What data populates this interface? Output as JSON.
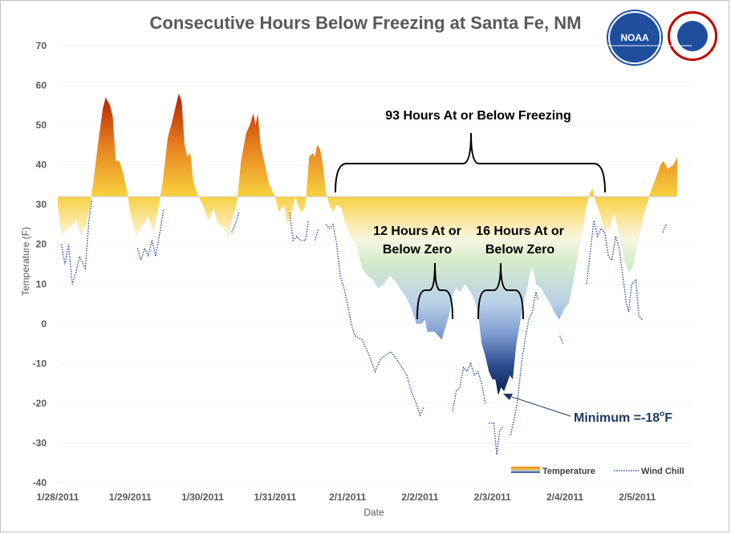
{
  "chart_data": {
    "type": "area",
    "title": "Consecutive Hours Below Freezing at Santa Fe, NM",
    "xlabel": "Date",
    "ylabel": "Temperature (F)",
    "ylim": [
      -40,
      70
    ],
    "xlim": [
      0,
      8.75
    ],
    "y_ticks": [
      70,
      60,
      50,
      40,
      30,
      20,
      10,
      0,
      -10,
      -20,
      -30,
      -40
    ],
    "x_ticks": [
      "1/28/2011",
      "1/29/2011",
      "1/30/2011",
      "1/31/2011",
      "2/1/2011",
      "2/2/2011",
      "2/3/2011",
      "2/4/2011",
      "2/5/2011"
    ],
    "freezing_line": 32,
    "legend": {
      "placement": "bottom-right",
      "entries": [
        "Temperature",
        "Wind Chill"
      ]
    },
    "series": [
      {
        "name": "Temperature",
        "points": [
          [
            0.0,
            30
          ],
          [
            0.05,
            22
          ],
          [
            0.15,
            24
          ],
          [
            0.25,
            26
          ],
          [
            0.32,
            22
          ],
          [
            0.4,
            25
          ],
          [
            0.45,
            30
          ],
          [
            0.5,
            37
          ],
          [
            0.56,
            46
          ],
          [
            0.62,
            54
          ],
          [
            0.66,
            57
          ],
          [
            0.72,
            55
          ],
          [
            0.76,
            52
          ],
          [
            0.8,
            41
          ],
          [
            0.85,
            41
          ],
          [
            0.9,
            38
          ],
          [
            0.95,
            34
          ],
          [
            1.0,
            28
          ],
          [
            1.08,
            22
          ],
          [
            1.15,
            24
          ],
          [
            1.25,
            27
          ],
          [
            1.32,
            23
          ],
          [
            1.38,
            28
          ],
          [
            1.45,
            36
          ],
          [
            1.52,
            47
          ],
          [
            1.58,
            51
          ],
          [
            1.63,
            55
          ],
          [
            1.67,
            58
          ],
          [
            1.71,
            56
          ],
          [
            1.75,
            45
          ],
          [
            1.79,
            42
          ],
          [
            1.83,
            43
          ],
          [
            1.87,
            36
          ],
          [
            1.92,
            33
          ],
          [
            2.0,
            30
          ],
          [
            2.08,
            26
          ],
          [
            2.15,
            29
          ],
          [
            2.22,
            25
          ],
          [
            2.3,
            24
          ],
          [
            2.35,
            21
          ],
          [
            2.4,
            26
          ],
          [
            2.47,
            30
          ],
          [
            2.53,
            41
          ],
          [
            2.6,
            48
          ],
          [
            2.65,
            50
          ],
          [
            2.7,
            53
          ],
          [
            2.73,
            50
          ],
          [
            2.76,
            53
          ],
          [
            2.8,
            45
          ],
          [
            2.86,
            40
          ],
          [
            2.92,
            35
          ],
          [
            3.0,
            32
          ],
          [
            3.05,
            28
          ],
          [
            3.12,
            30
          ],
          [
            3.17,
            25
          ],
          [
            3.22,
            27
          ],
          [
            3.28,
            32
          ],
          [
            3.33,
            29
          ],
          [
            3.38,
            28
          ],
          [
            3.42,
            30
          ],
          [
            3.47,
            42
          ],
          [
            3.52,
            43
          ],
          [
            3.55,
            42
          ],
          [
            3.58,
            45
          ],
          [
            3.62,
            44
          ],
          [
            3.66,
            40
          ],
          [
            3.7,
            33
          ],
          [
            3.75,
            30
          ],
          [
            3.8,
            28
          ],
          [
            3.85,
            30
          ],
          [
            3.92,
            29
          ],
          [
            3.96,
            26
          ],
          [
            4.0,
            24
          ],
          [
            4.06,
            21
          ],
          [
            4.12,
            20
          ],
          [
            4.2,
            14
          ],
          [
            4.28,
            12
          ],
          [
            4.35,
            11
          ],
          [
            4.42,
            9
          ],
          [
            4.5,
            10
          ],
          [
            4.58,
            12
          ],
          [
            4.65,
            11
          ],
          [
            4.72,
            9
          ],
          [
            4.8,
            7
          ],
          [
            4.88,
            4
          ],
          [
            4.95,
            0
          ],
          [
            5.02,
            0
          ],
          [
            5.07,
            1
          ],
          [
            5.1,
            -2
          ],
          [
            5.2,
            -2
          ],
          [
            5.3,
            -4
          ],
          [
            5.35,
            -1
          ],
          [
            5.4,
            2
          ],
          [
            5.45,
            7
          ],
          [
            5.5,
            9
          ],
          [
            5.55,
            8
          ],
          [
            5.62,
            10
          ],
          [
            5.7,
            8
          ],
          [
            5.75,
            6
          ],
          [
            5.8,
            3
          ],
          [
            5.85,
            -5
          ],
          [
            5.9,
            -8
          ],
          [
            5.95,
            -12
          ],
          [
            6.0,
            -14
          ],
          [
            6.04,
            -14
          ],
          [
            6.08,
            -18
          ],
          [
            6.12,
            -16
          ],
          [
            6.16,
            -17
          ],
          [
            6.2,
            -15
          ],
          [
            6.24,
            -13
          ],
          [
            6.28,
            -14
          ],
          [
            6.33,
            -5
          ],
          [
            6.38,
            0
          ],
          [
            6.42,
            5
          ],
          [
            6.47,
            8
          ],
          [
            6.52,
            13
          ],
          [
            6.56,
            14
          ],
          [
            6.6,
            10
          ],
          [
            6.67,
            9
          ],
          [
            6.73,
            7
          ],
          [
            6.8,
            5
          ],
          [
            6.85,
            3
          ],
          [
            6.92,
            1
          ],
          [
            7.0,
            4
          ],
          [
            7.05,
            5
          ],
          [
            7.1,
            9
          ],
          [
            7.15,
            14
          ],
          [
            7.2,
            19
          ],
          [
            7.25,
            24
          ],
          [
            7.3,
            30
          ],
          [
            7.35,
            33
          ],
          [
            7.38,
            34
          ],
          [
            7.42,
            31
          ],
          [
            7.48,
            28
          ],
          [
            7.55,
            23
          ],
          [
            7.62,
            24
          ],
          [
            7.68,
            28
          ],
          [
            7.75,
            22
          ],
          [
            7.82,
            16
          ],
          [
            7.88,
            13
          ],
          [
            7.93,
            14
          ],
          [
            7.98,
            18
          ],
          [
            8.03,
            22
          ],
          [
            8.1,
            28
          ],
          [
            8.18,
            33
          ],
          [
            8.28,
            38
          ],
          [
            8.32,
            40
          ],
          [
            8.36,
            41
          ],
          [
            8.42,
            39
          ],
          [
            8.5,
            40
          ],
          [
            8.55,
            42
          ]
        ]
      },
      {
        "name": "Wind Chill",
        "segments": [
          [
            [
              0.05,
              20
            ],
            [
              0.1,
              15
            ],
            [
              0.15,
              20
            ],
            [
              0.2,
              10
            ],
            [
              0.25,
              13
            ],
            [
              0.3,
              17
            ],
            [
              0.38,
              14
            ],
            [
              0.43,
              26
            ],
            [
              0.47,
              31
            ]
          ],
          [
            [
              1.1,
              19
            ],
            [
              1.15,
              16
            ],
            [
              1.2,
              19
            ],
            [
              1.25,
              17
            ],
            [
              1.3,
              21
            ],
            [
              1.35,
              17
            ],
            [
              1.42,
              24
            ],
            [
              1.46,
              29
            ]
          ],
          [
            [
              2.4,
              23
            ],
            [
              2.47,
              26
            ],
            [
              2.5,
              28
            ]
          ],
          [
            [
              3.2,
              28
            ],
            [
              3.25,
              21
            ],
            [
              3.3,
              22
            ],
            [
              3.35,
              21
            ],
            [
              3.42,
              21
            ],
            [
              3.46,
              26
            ]
          ],
          [
            [
              3.55,
              21
            ],
            [
              3.6,
              24
            ]
          ],
          [
            [
              3.7,
              25
            ],
            [
              3.75,
              24
            ],
            [
              3.8,
              25
            ],
            [
              3.85,
              20
            ],
            [
              3.9,
              12
            ],
            [
              3.95,
              9
            ],
            [
              4.0,
              5
            ],
            [
              4.05,
              0
            ],
            [
              4.1,
              -3
            ],
            [
              4.2,
              -4
            ],
            [
              4.3,
              -8
            ],
            [
              4.38,
              -12
            ],
            [
              4.45,
              -9
            ],
            [
              4.52,
              -8
            ],
            [
              4.6,
              -7
            ],
            [
              4.68,
              -9
            ],
            [
              4.75,
              -11
            ],
            [
              4.82,
              -13
            ],
            [
              4.88,
              -17
            ],
            [
              4.95,
              -20
            ],
            [
              5.0,
              -23
            ],
            [
              5.05,
              -21
            ]
          ],
          [
            [
              5.45,
              -22
            ],
            [
              5.5,
              -17
            ],
            [
              5.55,
              -16
            ],
            [
              5.6,
              -11
            ],
            [
              5.65,
              -12
            ],
            [
              5.7,
              -10
            ],
            [
              5.75,
              -13
            ],
            [
              5.8,
              -12
            ],
            [
              5.85,
              -15
            ],
            [
              5.9,
              -20
            ]
          ],
          [
            [
              5.95,
              -25
            ],
            [
              6.02,
              -25
            ],
            [
              6.06,
              -33
            ],
            [
              6.1,
              -27
            ],
            [
              6.14,
              -26
            ]
          ],
          [
            [
              6.25,
              -28
            ],
            [
              6.3,
              -24
            ],
            [
              6.35,
              -19
            ],
            [
              6.4,
              -10
            ],
            [
              6.45,
              -4
            ],
            [
              6.5,
              1
            ],
            [
              6.55,
              3
            ],
            [
              6.6,
              8
            ],
            [
              6.63,
              6
            ]
          ],
          [
            [
              6.93,
              -3
            ],
            [
              6.97,
              -5
            ]
          ],
          [
            [
              7.3,
              10
            ],
            [
              7.35,
              18
            ],
            [
              7.4,
              26
            ],
            [
              7.45,
              22
            ],
            [
              7.5,
              24
            ],
            [
              7.55,
              23
            ],
            [
              7.6,
              17
            ],
            [
              7.65,
              16
            ],
            [
              7.7,
              22
            ],
            [
              7.75,
              19
            ],
            [
              7.8,
              12
            ],
            [
              7.85,
              5
            ],
            [
              7.88,
              3
            ],
            [
              7.92,
              10
            ],
            [
              7.98,
              11
            ],
            [
              8.02,
              2
            ],
            [
              8.07,
              1
            ]
          ],
          [
            [
              8.35,
              23
            ],
            [
              8.4,
              25
            ]
          ]
        ]
      }
    ],
    "annotations": {
      "total": {
        "line1": "93 Hours At or Below Freezing"
      },
      "zero1": {
        "line1": "12 Hours At or",
        "line2": "Below Zero"
      },
      "zero2": {
        "line1": "16 Hours At or",
        "line2": "Below Zero"
      },
      "minimum": {
        "label": "Minimum =-18",
        "unit": "F",
        "degree": "o",
        "value": -18
      }
    }
  }
}
